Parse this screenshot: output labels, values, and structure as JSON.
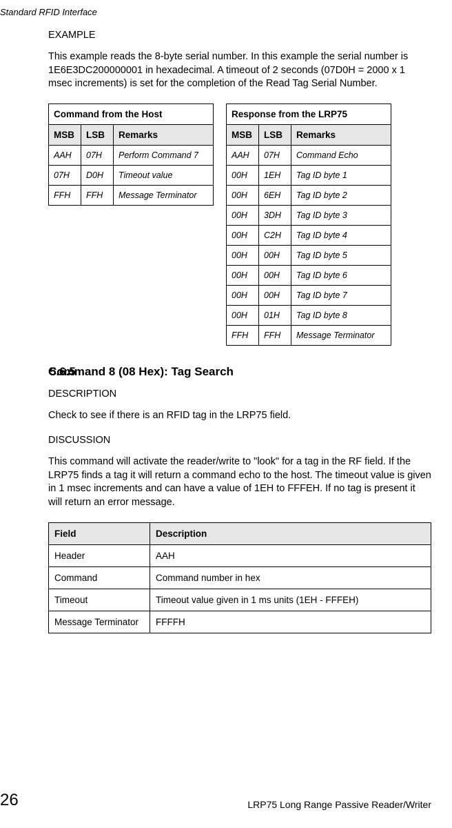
{
  "running_header": "Standard RFID Interface",
  "example": {
    "label": "EXAMPLE",
    "para": "This example reads the 8-byte serial number. In this example the serial number is 1E6E3DC200000001 in hexadecimal. A timeout of 2 seconds (07D0H = 2000 x 1 msec increments) is set for the completion of the Read Tag Serial Number."
  },
  "command_table": {
    "caption": "Command from the Host",
    "headers": [
      "MSB",
      "LSB",
      "Remarks"
    ],
    "rows": [
      [
        "AAH",
        "07H",
        "Perform Command 7"
      ],
      [
        "07H",
        "D0H",
        "Timeout value"
      ],
      [
        "FFH",
        "FFH",
        "Message Terminator"
      ]
    ]
  },
  "response_table": {
    "caption": "Response from the LRP75",
    "headers": [
      "MSB",
      "LSB",
      "Remarks"
    ],
    "rows": [
      [
        "AAH",
        "07H",
        "Command Echo"
      ],
      [
        "00H",
        "1EH",
        "Tag ID byte 1"
      ],
      [
        "00H",
        "6EH",
        "Tag ID byte 2"
      ],
      [
        "00H",
        "3DH",
        "Tag ID byte 3"
      ],
      [
        "00H",
        "C2H",
        "Tag ID byte 4"
      ],
      [
        "00H",
        "00H",
        "Tag ID byte 5"
      ],
      [
        "00H",
        "00H",
        "Tag ID byte 6"
      ],
      [
        "00H",
        "00H",
        "Tag ID byte 7"
      ],
      [
        "00H",
        "01H",
        "Tag ID byte 8"
      ],
      [
        "FFH",
        "FFH",
        "Message Terminator"
      ]
    ]
  },
  "section": {
    "number": "5.6.5",
    "title": "Command 8 (08 Hex): Tag Search",
    "desc_label": "DESCRIPTION",
    "desc_para": "Check to see if there is an RFID tag in the LRP75 field.",
    "disc_label": "DISCUSSION",
    "disc_para": "This command will activate the reader/write to \"look\" for a tag in the RF field. If the LRP75 finds a tag it will return a command echo to the host. The timeout value is given in 1 msec increments and can have a value of 1EH to FFFEH. If no tag is present it will return an error message."
  },
  "field_table": {
    "headers": [
      "Field",
      "Description"
    ],
    "rows": [
      [
        "Header",
        "AAH"
      ],
      [
        "Command",
        "Command number in hex"
      ],
      [
        "Timeout",
        "Timeout value given in 1 ms units (1EH - FFFEH)"
      ],
      [
        "Message Terminator",
        "FFFFH"
      ]
    ]
  },
  "footer": {
    "page": "26",
    "text": "LRP75 Long Range Passive Reader/Writer"
  }
}
